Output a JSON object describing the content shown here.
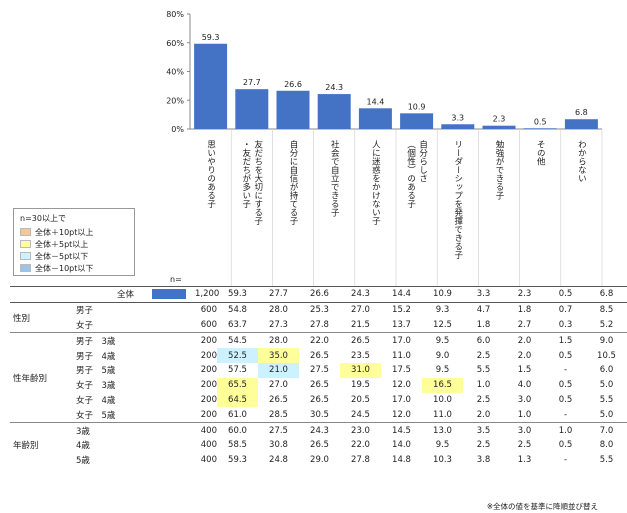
{
  "chart_data": {
    "type": "bar",
    "categories": [
      "思いやりのある子",
      "友だちを大切にする子・友だちが多い子",
      "自分に自信が持てる子",
      "社会で自立できる子",
      "人に迷惑をかけない子",
      "自分らしさ（個性）のある子",
      "リーダーシップを発揮できる子",
      "勉強ができる子",
      "その他",
      "わからない"
    ],
    "values": [
      59.3,
      27.7,
      26.6,
      24.3,
      14.4,
      10.9,
      3.3,
      2.3,
      0.5,
      6.8
    ],
    "yticks": [
      "80%",
      "60%",
      "40%",
      "20%",
      "0%"
    ],
    "ylim": [
      0,
      80
    ],
    "bar_color": "#4472c4"
  },
  "legend": {
    "title": "n=30以上で",
    "items": [
      {
        "label": "全体＋10pt以上",
        "color": "#f4c79a"
      },
      {
        "label": "全体＋5pt以上",
        "color": "#ffff99"
      },
      {
        "label": "全体－5pt以下",
        "color": "#ccf2ff"
      },
      {
        "label": "全体－10pt以下",
        "color": "#9dc3e6"
      }
    ]
  },
  "n_label": "n=",
  "table": {
    "total": {
      "label": "全体",
      "n": "1,200",
      "values": [
        "59.3",
        "27.7",
        "26.6",
        "24.3",
        "14.4",
        "10.9",
        "3.3",
        "2.3",
        "0.5",
        "6.8"
      ]
    },
    "groups": [
      {
        "name": "性別",
        "rows": [
          {
            "label": "男子",
            "n": "600",
            "values": [
              "54.8",
              "28.0",
              "25.3",
              "27.0",
              "15.2",
              "9.3",
              "4.7",
              "1.8",
              "0.7",
              "8.5"
            ],
            "hl": []
          },
          {
            "label": "女子",
            "n": "600",
            "values": [
              "63.7",
              "27.3",
              "27.8",
              "21.5",
              "13.7",
              "12.5",
              "1.8",
              "2.7",
              "0.3",
              "5.2"
            ],
            "hl": []
          }
        ]
      },
      {
        "name": "性年齢別",
        "rows": [
          {
            "label": "男子　3歳",
            "n": "200",
            "values": [
              "54.5",
              "28.0",
              "22.0",
              "26.5",
              "17.0",
              "9.5",
              "6.0",
              "2.0",
              "1.5",
              "9.0"
            ],
            "hl": []
          },
          {
            "label": "男子　4歳",
            "n": "200",
            "values": [
              "52.5",
              "35.0",
              "26.5",
              "23.5",
              "11.0",
              "9.0",
              "2.5",
              "2.0",
              "0.5",
              "10.5"
            ],
            "hl": [
              [
                0,
                "low"
              ],
              [
                1,
                "high"
              ]
            ]
          },
          {
            "label": "男子　5歳",
            "n": "200",
            "values": [
              "57.5",
              "21.0",
              "27.5",
              "31.0",
              "17.5",
              "9.5",
              "5.5",
              "1.5",
              "-",
              "6.0"
            ],
            "hl": [
              [
                1,
                "low"
              ],
              [
                3,
                "high"
              ]
            ]
          },
          {
            "label": "女子　3歳",
            "n": "200",
            "values": [
              "65.5",
              "27.0",
              "26.5",
              "19.5",
              "12.0",
              "16.5",
              "1.0",
              "4.0",
              "0.5",
              "5.0"
            ],
            "hl": [
              [
                0,
                "high"
              ],
              [
                5,
                "high"
              ]
            ]
          },
          {
            "label": "女子　4歳",
            "n": "200",
            "values": [
              "64.5",
              "26.5",
              "26.5",
              "20.5",
              "17.0",
              "10.0",
              "2.5",
              "3.0",
              "0.5",
              "5.5"
            ],
            "hl": [
              [
                0,
                "high"
              ]
            ]
          },
          {
            "label": "女子　5歳",
            "n": "200",
            "values": [
              "61.0",
              "28.5",
              "30.5",
              "24.5",
              "12.0",
              "11.0",
              "2.0",
              "1.0",
              "-",
              "5.0"
            ],
            "hl": []
          }
        ]
      },
      {
        "name": "年齢別",
        "rows": [
          {
            "label": "3歳",
            "n": "400",
            "values": [
              "60.0",
              "27.5",
              "24.3",
              "23.0",
              "14.5",
              "13.0",
              "3.5",
              "3.0",
              "1.0",
              "7.0"
            ],
            "hl": []
          },
          {
            "label": "4歳",
            "n": "400",
            "values": [
              "58.5",
              "30.8",
              "26.5",
              "22.0",
              "14.0",
              "9.5",
              "2.5",
              "2.5",
              "0.5",
              "8.0"
            ],
            "hl": []
          },
          {
            "label": "5歳",
            "n": "400",
            "values": [
              "59.3",
              "24.8",
              "29.0",
              "27.8",
              "14.8",
              "10.3",
              "3.8",
              "1.3",
              "-",
              "5.5"
            ],
            "hl": []
          }
        ]
      }
    ]
  },
  "footnote": "※全体の値を基準に降順並び替え"
}
